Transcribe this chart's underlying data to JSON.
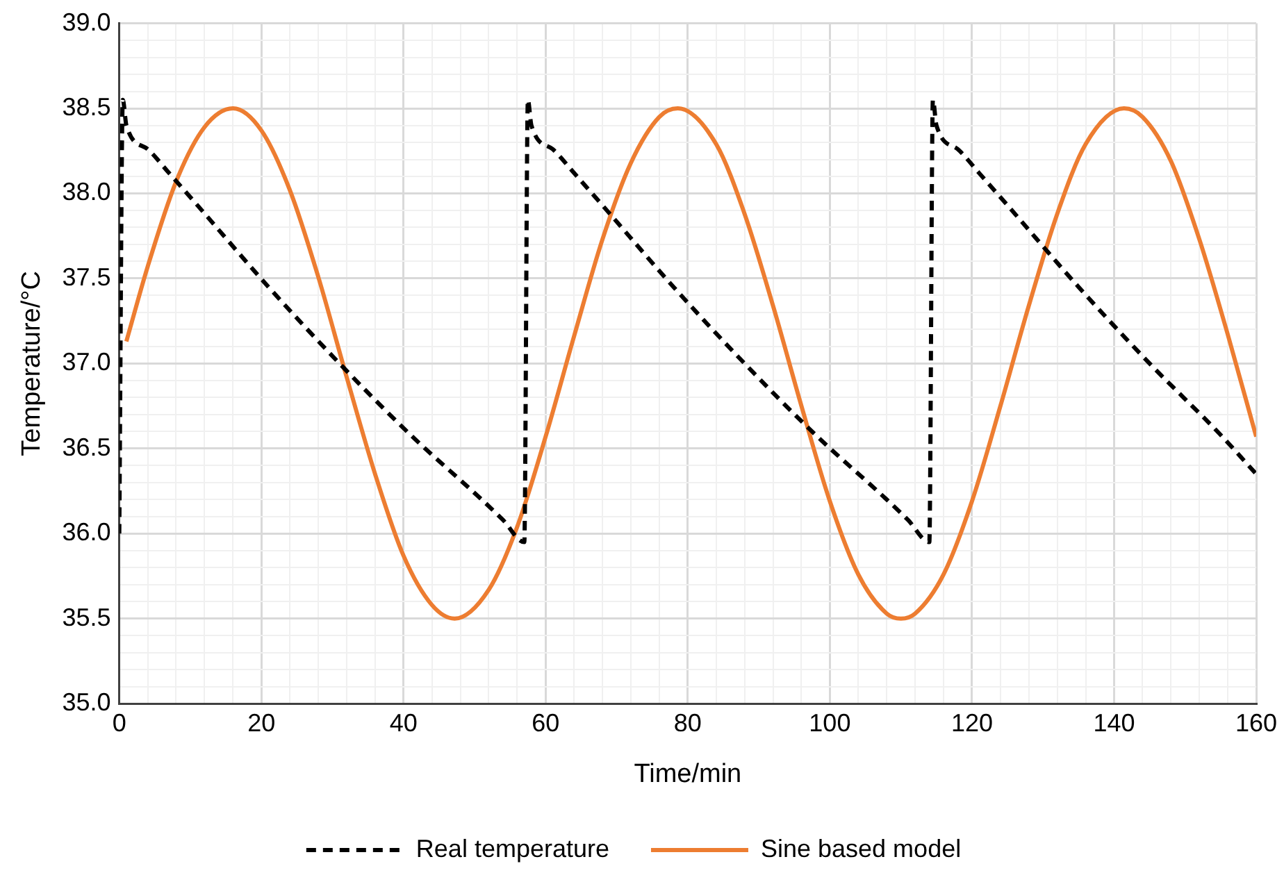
{
  "chart_data": {
    "type": "line",
    "xlabel": "Time/min",
    "ylabel": "Temperature/°C",
    "xlim": [
      0,
      160
    ],
    "ylim": [
      35,
      39
    ],
    "xticks": [
      0,
      {
        "value": 4,
        "label": null
      },
      {
        "value": 8,
        "label": null
      },
      {
        "value": 12,
        "label": null
      },
      {
        "value": 16,
        "label": null
      },
      20,
      {
        "value": 24,
        "label": null
      },
      {
        "value": 28,
        "label": null
      },
      {
        "value": 32,
        "label": null
      },
      {
        "value": 36,
        "label": null
      },
      40,
      {
        "value": 44,
        "label": null
      },
      {
        "value": 48,
        "label": null
      },
      {
        "value": 52,
        "label": null
      },
      {
        "value": 56,
        "label": null
      },
      60,
      {
        "value": 64,
        "label": null
      },
      {
        "value": 68,
        "label": null
      },
      {
        "value": 72,
        "label": null
      },
      {
        "value": 76,
        "label": null
      },
      80,
      {
        "value": 84,
        "label": null
      },
      {
        "value": 88,
        "label": null
      },
      {
        "value": 92,
        "label": null
      },
      {
        "value": 96,
        "label": null
      },
      100,
      {
        "value": 104,
        "label": null
      },
      {
        "value": 108,
        "label": null
      },
      {
        "value": 112,
        "label": null
      },
      {
        "value": 116,
        "label": null
      },
      120,
      {
        "value": 124,
        "label": null
      },
      {
        "value": 128,
        "label": null
      },
      {
        "value": 132,
        "label": null
      },
      {
        "value": 136,
        "label": null
      },
      140,
      {
        "value": 144,
        "label": null
      },
      {
        "value": 148,
        "label": null
      },
      {
        "value": 152,
        "label": null
      },
      {
        "value": 156,
        "label": null
      },
      160
    ],
    "yticks": [
      {
        "value": 35,
        "label": "35.0"
      },
      {
        "value": 35.1,
        "label": null
      },
      {
        "value": 35.2,
        "label": null
      },
      {
        "value": 35.3,
        "label": null
      },
      {
        "value": 35.4,
        "label": null
      },
      {
        "value": 35.5,
        "label": "35.5"
      },
      {
        "value": 35.6,
        "label": null
      },
      {
        "value": 35.7,
        "label": null
      },
      {
        "value": 35.8,
        "label": null
      },
      {
        "value": 35.9,
        "label": null
      },
      {
        "value": 36,
        "label": "36.0"
      },
      {
        "value": 36.1,
        "label": null
      },
      {
        "value": 36.2,
        "label": null
      },
      {
        "value": 36.3,
        "label": null
      },
      {
        "value": 36.4,
        "label": null
      },
      {
        "value": 36.5,
        "label": "36.5"
      },
      {
        "value": 36.6,
        "label": null
      },
      {
        "value": 36.7,
        "label": null
      },
      {
        "value": 36.8,
        "label": null
      },
      {
        "value": 36.9,
        "label": null
      },
      {
        "value": 37,
        "label": "37.0"
      },
      {
        "value": 37.1,
        "label": null
      },
      {
        "value": 37.2,
        "label": null
      },
      {
        "value": 37.3,
        "label": null
      },
      {
        "value": 37.4,
        "label": null
      },
      {
        "value": 37.5,
        "label": "37.5"
      },
      {
        "value": 37.6,
        "label": null
      },
      {
        "value": 37.7,
        "label": null
      },
      {
        "value": 37.8,
        "label": null
      },
      {
        "value": 37.9,
        "label": null
      },
      {
        "value": 38,
        "label": "38.0"
      },
      {
        "value": 38.1,
        "label": null
      },
      {
        "value": 38.2,
        "label": null
      },
      {
        "value": 38.3,
        "label": null
      },
      {
        "value": 38.4,
        "label": null
      },
      {
        "value": 38.5,
        "label": "38.5"
      },
      {
        "value": 38.6,
        "label": null
      },
      {
        "value": 38.7,
        "label": null
      },
      {
        "value": 38.8,
        "label": null
      },
      {
        "value": 38.9,
        "label": null
      },
      {
        "value": 39,
        "label": "39.0"
      }
    ],
    "grid": true,
    "legend": "bottom",
    "marker": "none",
    "series": [
      {
        "name": "Real temperature",
        "color": "#000000",
        "line_style": "dashed",
        "x": [
          0,
          0.5,
          1,
          4,
          7,
          11,
          21,
          31,
          41,
          51,
          54,
          57,
          57.5,
          58,
          61,
          64,
          68,
          78,
          88,
          98,
          108,
          111,
          114,
          114.5,
          115,
          118,
          121,
          125,
          135,
          145,
          155,
          160
        ],
        "values": [
          36.0,
          38.55,
          38.4,
          38.26,
          38.12,
          37.93,
          37.45,
          37.0,
          36.58,
          36.2,
          36.08,
          35.95,
          38.55,
          38.4,
          38.26,
          38.12,
          37.93,
          37.45,
          37.0,
          36.58,
          36.2,
          36.08,
          35.95,
          38.55,
          38.4,
          38.26,
          38.12,
          37.93,
          37.45,
          37.0,
          36.58,
          36.35
        ]
      },
      {
        "name": "Sine based model",
        "color": "#ed7d31",
        "line_style": "solid",
        "x": [
          1,
          4,
          8,
          12,
          16,
          20,
          24,
          28,
          32,
          36,
          40,
          44,
          47.2,
          52,
          56,
          60,
          64,
          68,
          72,
          76,
          78.6,
          84,
          88,
          92,
          96,
          100,
          104,
          108,
          110,
          112,
          116,
          120,
          124,
          128,
          132,
          136,
          141.4,
          144,
          148,
          152,
          156,
          160
        ],
        "values": [
          37.13,
          37.57,
          38.07,
          38.39,
          38.5,
          38.37,
          38.02,
          37.51,
          36.92,
          36.35,
          35.87,
          35.58,
          35.5,
          35.67,
          36.04,
          36.57,
          37.16,
          37.73,
          38.18,
          38.45,
          38.5,
          38.29,
          37.88,
          37.34,
          36.75,
          36.19,
          35.76,
          35.53,
          35.5,
          35.53,
          35.76,
          36.19,
          36.75,
          37.34,
          37.88,
          38.29,
          38.5,
          38.45,
          38.19,
          37.73,
          37.17,
          36.57
        ]
      }
    ]
  }
}
